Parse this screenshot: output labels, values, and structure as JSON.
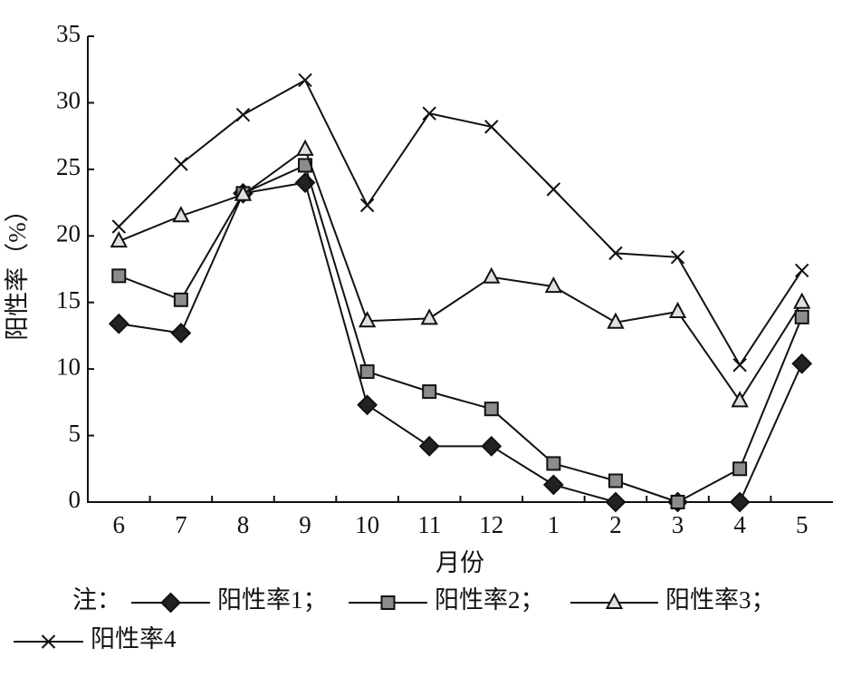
{
  "chart_data": {
    "type": "line",
    "y_label": "阳性率（%）",
    "x_label": "月份",
    "legend_prefix": "注：",
    "legend_separator": "；",
    "categories": [
      "6",
      "7",
      "8",
      "9",
      "10",
      "11",
      "12",
      "1",
      "2",
      "3",
      "4",
      "5"
    ],
    "series": [
      {
        "name": "阳性率1",
        "color": "#222222",
        "marker": "diamond",
        "values": [
          13.4,
          12.7,
          23.2,
          24.0,
          7.3,
          4.2,
          4.2,
          1.3,
          0,
          0,
          0,
          10.4
        ]
      },
      {
        "name": "阳性率2",
        "color": "#8c8c8c",
        "marker": "square",
        "values": [
          17.0,
          15.2,
          23.2,
          25.3,
          9.8,
          8.3,
          7.0,
          2.9,
          1.6,
          0,
          2.5,
          13.9
        ]
      },
      {
        "name": "阳性率3",
        "color": "#e0e0e0",
        "marker": "triangle",
        "values": [
          19.6,
          21.5,
          23.1,
          26.5,
          13.6,
          13.8,
          16.9,
          16.2,
          13.5,
          14.3,
          7.6,
          15.0
        ]
      },
      {
        "name": "阳性率4",
        "color": "#111111",
        "marker": "cross",
        "values": [
          20.7,
          25.4,
          29.1,
          31.7,
          22.3,
          29.2,
          28.2,
          23.5,
          18.7,
          18.4,
          10.3,
          17.4
        ]
      }
    ],
    "ylim": [
      0,
      35
    ],
    "yticks": [
      0,
      5,
      10,
      15,
      20,
      25,
      30,
      35
    ],
    "grid": false
  }
}
